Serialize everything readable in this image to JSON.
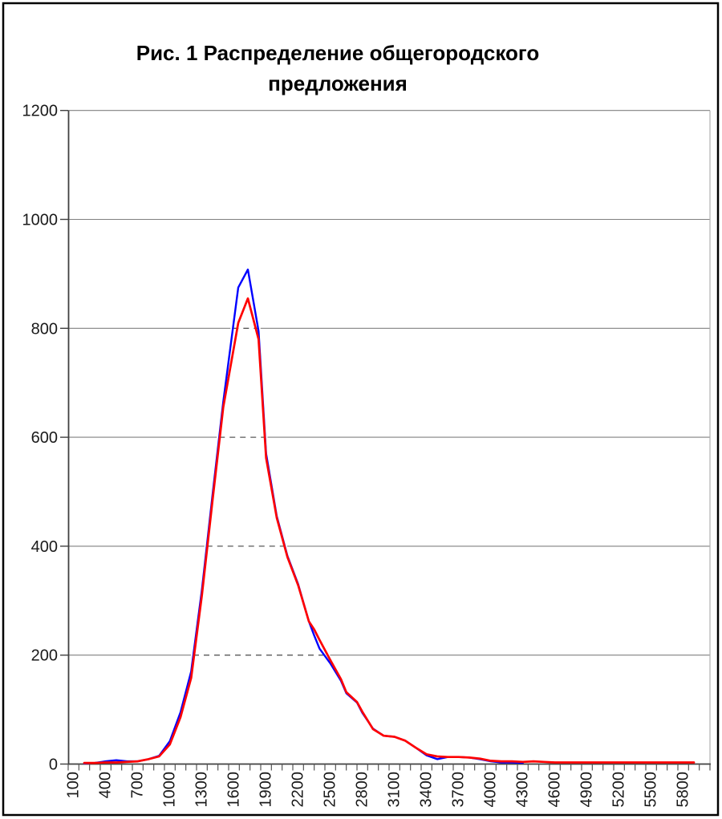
{
  "chart_data": {
    "type": "line",
    "title": "Рис. 1 Распределение общегородского предложения",
    "title_lines": [
      "Рис. 1 Распределение общегородского",
      "предложения"
    ],
    "x_axis": {
      "labels": [
        "100",
        "400",
        "700",
        "1000",
        "1300",
        "1600",
        "1900",
        "2200",
        "2500",
        "2800",
        "3100",
        "3400",
        "3700",
        "4000",
        "4300",
        "4600",
        "4900",
        "5200",
        "5500",
        "5800"
      ],
      "label_interval": 300,
      "category_width": 100,
      "first_category": 100,
      "n_categories": 60
    },
    "y_axis": {
      "labels": [
        "0",
        "200",
        "400",
        "600",
        "800",
        "1000",
        "1200"
      ],
      "min": 0,
      "max": 1200,
      "step": 200
    },
    "grid": {
      "line_color": "#808080",
      "dash_color": "#595959",
      "wall_color": "#b0b0b0",
      "dashed_inside_curves": true
    },
    "axis_color": "#404040",
    "tick_color": "#555555",
    "legend_position": "none",
    "series": [
      {
        "name": "blue",
        "color": "#0000FF",
        "points": [
          [
            200,
            1
          ],
          [
            300,
            2
          ],
          [
            400,
            5
          ],
          [
            500,
            7
          ],
          [
            600,
            5
          ],
          [
            700,
            5
          ],
          [
            800,
            9
          ],
          [
            900,
            15
          ],
          [
            1000,
            42
          ],
          [
            1100,
            95
          ],
          [
            1200,
            170
          ],
          [
            1300,
            320
          ],
          [
            1400,
            495
          ],
          [
            1500,
            665
          ],
          [
            1640,
            875
          ],
          [
            1730,
            908
          ],
          [
            1830,
            795
          ],
          [
            1900,
            570
          ],
          [
            2000,
            455
          ],
          [
            2100,
            382
          ],
          [
            2200,
            330
          ],
          [
            2300,
            262
          ],
          [
            2350,
            236
          ],
          [
            2400,
            212
          ],
          [
            2500,
            185
          ],
          [
            2600,
            153
          ],
          [
            2650,
            130
          ],
          [
            2750,
            113
          ],
          [
            2800,
            94
          ],
          [
            2900,
            65
          ],
          [
            3000,
            52
          ],
          [
            3100,
            50
          ],
          [
            3200,
            43
          ],
          [
            3300,
            30
          ],
          [
            3400,
            16
          ],
          [
            3500,
            9
          ],
          [
            3600,
            13
          ],
          [
            3700,
            13
          ],
          [
            3800,
            12
          ],
          [
            3900,
            9
          ],
          [
            4000,
            5
          ],
          [
            4100,
            3
          ],
          [
            4200,
            3
          ],
          [
            4300,
            2
          ]
        ]
      },
      {
        "name": "red",
        "color": "#FF0000",
        "points": [
          [
            200,
            2
          ],
          [
            300,
            2
          ],
          [
            400,
            3
          ],
          [
            500,
            3
          ],
          [
            600,
            4
          ],
          [
            700,
            5
          ],
          [
            800,
            9
          ],
          [
            900,
            14
          ],
          [
            1000,
            36
          ],
          [
            1100,
            86
          ],
          [
            1200,
            158
          ],
          [
            1300,
            310
          ],
          [
            1400,
            485
          ],
          [
            1500,
            655
          ],
          [
            1640,
            810
          ],
          [
            1730,
            855
          ],
          [
            1830,
            780
          ],
          [
            1900,
            562
          ],
          [
            2000,
            452
          ],
          [
            2100,
            380
          ],
          [
            2200,
            328
          ],
          [
            2300,
            262
          ],
          [
            2350,
            247
          ],
          [
            2400,
            228
          ],
          [
            2500,
            191
          ],
          [
            2600,
            156
          ],
          [
            2650,
            132
          ],
          [
            2750,
            114
          ],
          [
            2800,
            96
          ],
          [
            2900,
            64
          ],
          [
            3000,
            52
          ],
          [
            3100,
            50
          ],
          [
            3200,
            43
          ],
          [
            3300,
            30
          ],
          [
            3400,
            18
          ],
          [
            3500,
            14
          ],
          [
            3600,
            13
          ],
          [
            3700,
            13
          ],
          [
            3800,
            12
          ],
          [
            3900,
            10
          ],
          [
            4000,
            6
          ],
          [
            4100,
            5
          ],
          [
            4200,
            5
          ],
          [
            4300,
            4
          ],
          [
            4400,
            5
          ],
          [
            4500,
            4
          ],
          [
            4600,
            3
          ],
          [
            4800,
            3
          ],
          [
            5000,
            3
          ],
          [
            5200,
            3
          ],
          [
            5400,
            3
          ],
          [
            5600,
            3
          ],
          [
            5800,
            3
          ],
          [
            5900,
            3
          ]
        ]
      }
    ]
  }
}
